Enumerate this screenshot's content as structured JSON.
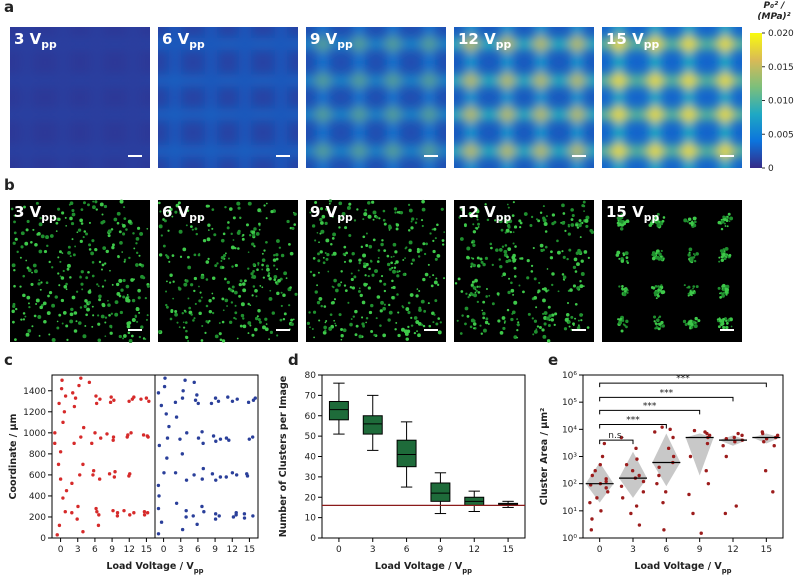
{
  "chart_data": [
    {
      "type": "heatmap",
      "panel": "a",
      "labels": [
        {
          "text": "3 V",
          "sub": "pp"
        },
        {
          "text": "6 V",
          "sub": "pp"
        },
        {
          "text": "9 V",
          "sub": "pp"
        },
        {
          "text": "12 V",
          "sub": "pp"
        },
        {
          "text": "15 V",
          "sub": "pp"
        }
      ],
      "colorbar": {
        "label": [
          "P₀² /",
          "(MPa)²"
        ],
        "lim": [
          0,
          0.02
        ],
        "ticks": [
          0,
          0.005,
          {
            "value": 0.01,
            "label": "0.010"
          },
          0.015,
          {
            "value": 0.02,
            "label": "0.020"
          }
        ]
      }
    },
    {
      "type": "micrograph",
      "panel": "b",
      "labels": [
        {
          "text": "3 V",
          "sub": "pp"
        },
        {
          "text": "6 V",
          "sub": "pp"
        },
        {
          "text": "9 V",
          "sub": "pp"
        },
        {
          "text": "12 V",
          "sub": "pp"
        },
        {
          "text": "15 V",
          "sub": "pp"
        }
      ]
    },
    {
      "type": "strip",
      "panel": "c",
      "ylabel": "Coordinate / µm",
      "xlabel": {
        "text": "Load Voltage / V",
        "sub": "pp"
      },
      "categories": [
        "0",
        "3",
        "6",
        "9",
        "12",
        "15"
      ],
      "ylim": [
        0,
        1550
      ],
      "yticks": [
        0,
        200,
        400,
        600,
        800,
        1000,
        1200,
        1400
      ],
      "series": [
        {
          "color": "#d62a2a",
          "values": [
            [
              30,
              120,
              250,
              380,
              450,
              560,
              700,
              820,
              900,
              1000,
              1100,
              1200,
              1280,
              1350,
              1420,
              1500
            ],
            [
              60,
              180,
              240,
              300,
              520,
              600,
              700,
              900,
              960,
              1050,
              1250,
              1330,
              1380,
              1450,
              1520
            ],
            [
              120,
              220,
              250,
              280,
              560,
              600,
              640,
              900,
              950,
              1000,
              1280,
              1320,
              1350,
              1480
            ],
            [
              210,
              240,
              260,
              580,
              610,
              630,
              930,
              960,
              990,
              1290,
              1310,
              1340
            ],
            [
              220,
              240,
              260,
              590,
              610,
              960,
              980,
              1000,
              1300,
              1320,
              1340
            ],
            [
              220,
              240,
              250,
              960,
              970,
              980,
              1300,
              1320,
              1330
            ]
          ]
        },
        {
          "color": "#2a3f9a",
          "values": [
            [
              40,
              150,
              280,
              400,
              500,
              620,
              760,
              880,
              950,
              1060,
              1180,
              1260,
              1380,
              1440,
              1520
            ],
            [
              80,
              200,
              260,
              330,
              550,
              620,
              800,
              940,
              1000,
              1150,
              1290,
              1330,
              1400,
              1500
            ],
            [
              130,
              210,
              250,
              300,
              560,
              600,
              660,
              900,
              950,
              1010,
              1280,
              1310,
              1360,
              1480
            ],
            [
              180,
              210,
              230,
              550,
              580,
              610,
              920,
              940,
              970,
              1280,
              1300,
              1330
            ],
            [
              200,
              220,
              240,
              580,
              600,
              620,
              930,
              950,
              1300,
              1320,
              1340
            ],
            [
              190,
              210,
              230,
              590,
              610,
              940,
              960,
              1290,
              1310,
              1330
            ]
          ]
        }
      ]
    },
    {
      "type": "box",
      "panel": "d",
      "ylabel": "Number of Clusters per Image",
      "xlabel": {
        "text": "Load Voltage / V",
        "sub": "pp"
      },
      "categories": [
        "0",
        "3",
        "6",
        "9",
        "12",
        "15"
      ],
      "ylim": [
        0,
        80
      ],
      "yticks": [
        0,
        10,
        20,
        30,
        40,
        50,
        60,
        70,
        80
      ],
      "color": "#1e6b3a",
      "boxes": [
        {
          "whislo": 51,
          "q1": 58,
          "med": 63,
          "q3": 67,
          "whishi": 76
        },
        {
          "whislo": 43,
          "q1": 51,
          "med": 56,
          "q3": 60,
          "whishi": 70
        },
        {
          "whislo": 25,
          "q1": 35,
          "med": 41,
          "q3": 48,
          "whishi": 57
        },
        {
          "whislo": 12,
          "q1": 18,
          "med": 22,
          "q3": 27,
          "whishi": 32
        },
        {
          "whislo": 13,
          "q1": 16,
          "med": 18,
          "q3": 20,
          "whishi": 23
        },
        {
          "whislo": 15,
          "q1": 16,
          "med": 16.5,
          "q3": 17,
          "whishi": 18
        }
      ],
      "reference_line": {
        "value": 16,
        "color": "#8b1a1a"
      }
    },
    {
      "type": "strip",
      "panel": "e",
      "log_scale": true,
      "ylabel": "Cluster Area / µm²",
      "xlabel": {
        "text": "Load Voltage / V",
        "sub": "pp"
      },
      "categories": [
        "0",
        "3",
        "6",
        "9",
        "12",
        "15"
      ],
      "ylim": [
        1,
        1000000
      ],
      "yticks": [
        {
          "value": 1,
          "label": "10⁰"
        },
        {
          "value": 10,
          "label": "10¹"
        },
        {
          "value": 100,
          "label": "10²"
        },
        {
          "value": 1000,
          "label": "10³"
        },
        {
          "value": 10000,
          "label": "10⁴"
        },
        {
          "value": 100000,
          "label": "10⁵"
        },
        {
          "value": 1000000,
          "label": "10⁶"
        }
      ],
      "series": [
        {
          "color": "#9c1c1c",
          "values": [
            [
              2,
              5,
              10,
              20,
              30,
              50,
              70,
              90,
              100,
              120,
              150,
              200,
              300,
              500,
              1000,
              3000
            ],
            [
              3,
              8,
              15,
              30,
              50,
              80,
              120,
              160,
              200,
              300,
              500,
              800,
              2000,
              5000
            ],
            [
              2,
              20,
              50,
              100,
              200,
              400,
              600,
              1000,
              2000,
              5000,
              8000,
              10000,
              12000
            ],
            [
              1.5,
              8,
              40,
              100,
              300,
              1000,
              3000,
              5000,
              6000,
              7000,
              8000,
              9000
            ],
            [
              8,
              15,
              1000,
              2500,
              3500,
              4000,
              4500,
              5000,
              6000,
              7000
            ],
            [
              50,
              300,
              2500,
              3500,
              4500,
              5000,
              6000,
              7000,
              8000
            ]
          ]
        }
      ],
      "diamonds": [
        {
          "low": 20,
          "median": 100,
          "high": 600
        },
        {
          "low": 30,
          "median": 160,
          "high": 1500
        },
        {
          "low": 80,
          "median": 600,
          "high": 7000
        },
        {
          "low": 200,
          "median": 5000,
          "high": 7000
        },
        {
          "low": 2500,
          "median": 4000,
          "high": 6000
        },
        {
          "low": 3000,
          "median": 5000,
          "high": 7000
        }
      ],
      "diamond_color": "#c8c8c8",
      "brackets": [
        {
          "from": 0,
          "to": 1,
          "y": 4000,
          "label": "n.s."
        },
        {
          "from": 0,
          "to": 2,
          "y": 15000,
          "label": "***"
        },
        {
          "from": 0,
          "to": 3,
          "y": 50000,
          "label": "***"
        },
        {
          "from": 0,
          "to": 4,
          "y": 150000,
          "label": "***"
        },
        {
          "from": 0,
          "to": 5,
          "y": 500000,
          "label": "***"
        }
      ]
    }
  ]
}
